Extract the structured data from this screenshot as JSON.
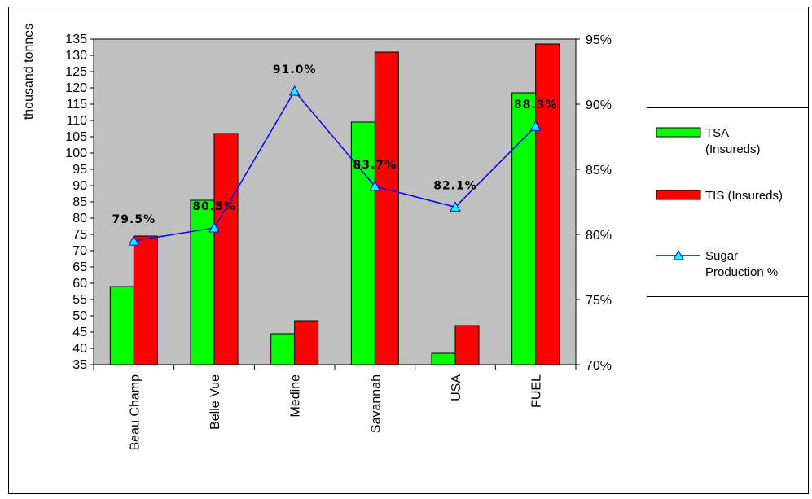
{
  "chart_data": {
    "type": "bar",
    "categories": [
      "Beau Champ",
      "Belle Vue",
      "Medine",
      "Savannah",
      "USA",
      "FUEL"
    ],
    "ylabel": "thousand tonnes",
    "ylim": [
      35,
      135
    ],
    "ytick_step": 5,
    "y2lim": [
      70,
      95
    ],
    "y2_ticks": [
      "70%",
      "75%",
      "80%",
      "85%",
      "90%",
      "95%"
    ],
    "y2_tick_values": [
      70,
      75,
      80,
      85,
      90,
      95
    ],
    "series": [
      {
        "name": "TSA (Insureds)",
        "kind": "bar",
        "axis": "left",
        "color": "#00ff00",
        "values": [
          59,
          85.5,
          44.5,
          109.5,
          38.5,
          118.5
        ]
      },
      {
        "name": "TIS (Insureds)",
        "kind": "bar",
        "axis": "left",
        "color": "#ff0000",
        "values": [
          74.5,
          106,
          48.5,
          131,
          47,
          133.5
        ]
      },
      {
        "name": "Sugar Production %",
        "kind": "line",
        "axis": "right",
        "color": "#0000ff",
        "marker_color": "#00ffff",
        "values": [
          79.5,
          80.5,
          91.0,
          83.7,
          82.1,
          88.3
        ],
        "labels": [
          "79.5%",
          "80.5%",
          "91.0%",
          "83.7%",
          "82.1%",
          "88.3%"
        ]
      }
    ],
    "legend": {
      "placement": "right",
      "entries": [
        {
          "lines": [
            "TSA",
            "(Insureds)"
          ]
        },
        {
          "lines": [
            "TIS (Insureds)"
          ]
        },
        {
          "lines": [
            "Sugar",
            "Production %"
          ]
        }
      ]
    },
    "plot_background": "#c0c0c0"
  }
}
